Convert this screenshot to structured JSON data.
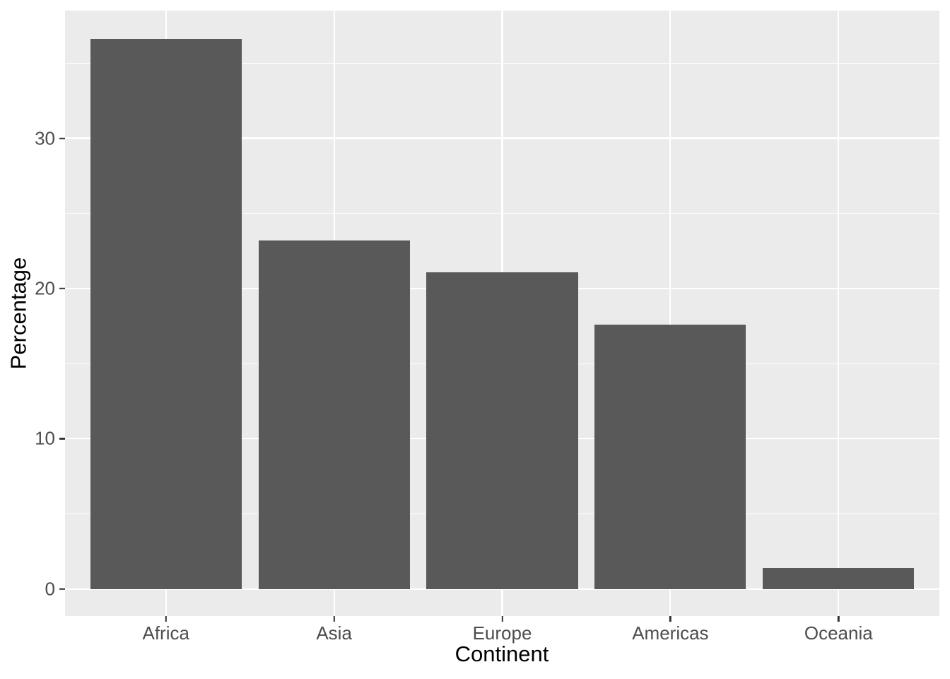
{
  "chart_data": {
    "type": "bar",
    "title": "",
    "categories": [
      "Africa",
      "Asia",
      "Europe",
      "Americas",
      "Oceania"
    ],
    "values": [
      36.6,
      23.2,
      21.1,
      17.6,
      1.4
    ],
    "xlabel": "Continent",
    "ylabel": "Percentage",
    "ylim": [
      -1.8,
      38.5
    ],
    "yticks": [
      0,
      10,
      20,
      30
    ],
    "ytick_labels": [
      "0",
      "10",
      "20",
      "30"
    ],
    "yminor_ticks": [
      5,
      15,
      25,
      35
    ],
    "grid": "white major and minor horizontal lines, white vertical lines at category centers, on grey panel",
    "legend": "none",
    "bar_relative_width": 0.9
  },
  "colors": {
    "background": "#FFFFFF",
    "panel": "#EBEBEB",
    "bar": "#595959",
    "grid": "#FFFFFF",
    "tick_label": "#4D4D4D",
    "axis_title": "#000000",
    "tick_mark": "#333333"
  }
}
